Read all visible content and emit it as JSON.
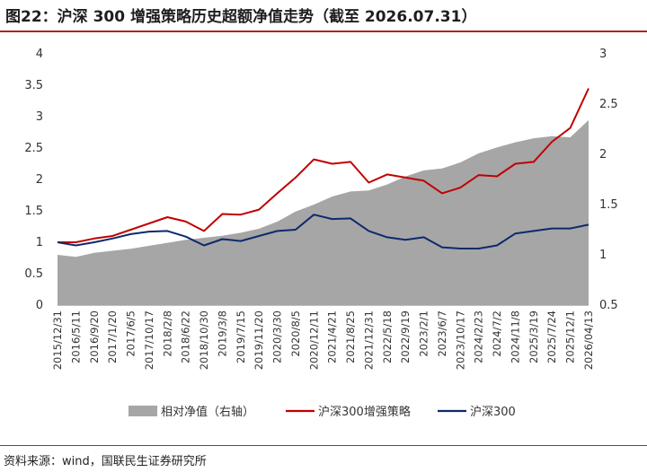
{
  "title": "图22：沪深 300 增强策略历史超额净值走势（截至 2026.07.31）",
  "source": "资料来源：wind，国联民生证券研究所",
  "colors": {
    "strategy": "#c00000",
    "index": "#0c2a6b",
    "excess": "#a6a6a6",
    "title_rule": "#b22222"
  },
  "chart_data": {
    "type": "line",
    "title": "",
    "xlabel": "",
    "ylabel": "",
    "y_left": {
      "lim": [
        0,
        4
      ],
      "ticks": [
        "0",
        "0.5",
        "1",
        "1.5",
        "2",
        "2.5",
        "3",
        "3.5",
        "4"
      ]
    },
    "y_right": {
      "lim": [
        0.5,
        3
      ],
      "ticks": [
        "0.5",
        "1",
        "1.5",
        "2",
        "2.5",
        "3"
      ]
    },
    "x_ticks": [
      "2015/12/31",
      "2016/5/11",
      "2016/9/20",
      "2017/1/20",
      "2017/6/5",
      "2017/10/17",
      "2018/2/8",
      "2018/6/22",
      "2018/10/30",
      "2019/3/8",
      "2019/7/15",
      "2019/11/20",
      "2020/3/30",
      "2020/8/5",
      "2020/12/11",
      "2021/4/21",
      "2021/8/25",
      "2021/12/31",
      "2022/5/18",
      "2022/9/19",
      "2023/2/1",
      "2023/6/7",
      "2023/10/17",
      "2024/2/23",
      "2024/7/2",
      "2024/11/8",
      "2025/3/19",
      "2025/7/24",
      "2025/12/1",
      "2026/04/13"
    ],
    "legend": [
      "相对净值（右轴）",
      "沪深300增强策略",
      "沪深300"
    ],
    "legend_position": "bottom",
    "series": [
      {
        "name": "相对净值（右轴）",
        "axis": "right",
        "kind": "area",
        "values": [
          1.0,
          0.98,
          1.02,
          1.04,
          1.06,
          1.09,
          1.12,
          1.15,
          1.17,
          1.19,
          1.22,
          1.26,
          1.33,
          1.43,
          1.5,
          1.58,
          1.63,
          1.64,
          1.7,
          1.78,
          1.84,
          1.86,
          1.92,
          2.01,
          2.07,
          2.12,
          2.16,
          2.18,
          2.17,
          2.34
        ]
      },
      {
        "name": "沪深300增强策略",
        "axis": "left",
        "kind": "line",
        "values": [
          1.0,
          1.0,
          1.06,
          1.1,
          1.2,
          1.3,
          1.4,
          1.33,
          1.18,
          1.45,
          1.44,
          1.52,
          1.78,
          2.03,
          2.32,
          2.25,
          2.28,
          1.95,
          2.08,
          2.03,
          1.98,
          1.78,
          1.87,
          2.07,
          2.05,
          2.25,
          2.28,
          2.6,
          2.82,
          3.45
        ]
      },
      {
        "name": "沪深300",
        "axis": "left",
        "kind": "line",
        "values": [
          1.0,
          0.95,
          1.0,
          1.06,
          1.13,
          1.17,
          1.18,
          1.09,
          0.95,
          1.05,
          1.02,
          1.1,
          1.18,
          1.2,
          1.44,
          1.37,
          1.38,
          1.18,
          1.08,
          1.04,
          1.08,
          0.92,
          0.9,
          0.9,
          0.95,
          1.14,
          1.18,
          1.22,
          1.22,
          1.28
        ]
      }
    ]
  }
}
